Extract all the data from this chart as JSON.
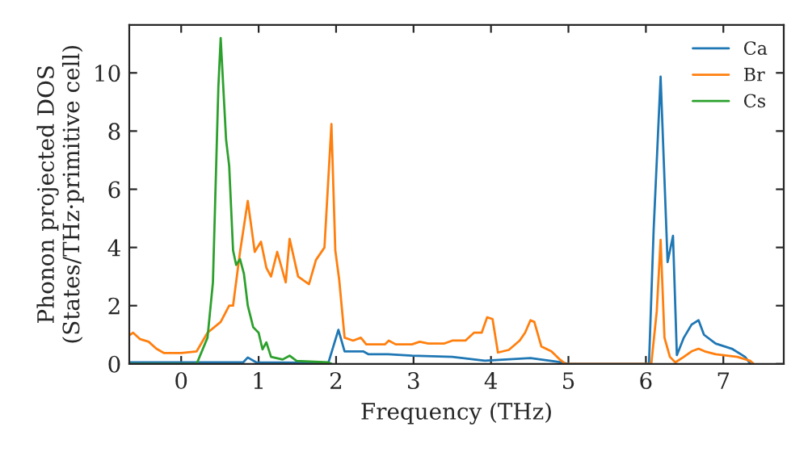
{
  "chart_data": {
    "type": "line",
    "xlabel": "Frequency (THz)",
    "ylabel": "Phonon projected DOS\n(States/THz·primitive cell)",
    "xlim": [
      -0.67,
      7.78
    ],
    "ylim": [
      0,
      11.65
    ],
    "xticks": [
      0,
      1,
      2,
      3,
      4,
      5,
      6,
      7
    ],
    "yticks": [
      0,
      2,
      4,
      6,
      8,
      10
    ],
    "grid": false,
    "legend": "top right",
    "marker": "none",
    "line_style": "solid",
    "series": [
      {
        "name": "Ca",
        "color": "#1f77b4",
        "x": [
          -0.67,
          0.8,
          0.86,
          0.97,
          1.9,
          2.03,
          2.11,
          2.35,
          2.42,
          2.67,
          2.98,
          3.5,
          3.92,
          4.51,
          4.89,
          5.0,
          6.04,
          6.1,
          6.19,
          6.28,
          6.35,
          6.4,
          6.49,
          6.59,
          6.68,
          6.75,
          6.9,
          7.11,
          7.28,
          7.35
        ],
        "values": [
          0.05,
          0.05,
          0.22,
          0.05,
          0.03,
          1.17,
          0.43,
          0.43,
          0.33,
          0.33,
          0.28,
          0.24,
          0.11,
          0.2,
          0.06,
          0,
          0,
          4.6,
          9.87,
          3.5,
          4.4,
          0.3,
          0.9,
          1.35,
          1.5,
          1.0,
          0.7,
          0.52,
          0.24,
          0
        ]
      },
      {
        "name": "Br",
        "color": "#ff7f0e",
        "x": [
          -0.67,
          -0.62,
          -0.53,
          -0.42,
          -0.32,
          -0.22,
          0,
          0.2,
          0.34,
          0.51,
          0.62,
          0.67,
          0.76,
          0.86,
          0.95,
          1.03,
          1.1,
          1.16,
          1.24,
          1.35,
          1.4,
          1.51,
          1.65,
          1.74,
          1.85,
          1.94,
          1.99,
          2.04,
          2.11,
          2.22,
          2.32,
          2.39,
          2.63,
          2.68,
          2.77,
          2.98,
          3.08,
          3.19,
          3.4,
          3.5,
          3.67,
          3.78,
          3.88,
          3.95,
          4.02,
          4.09,
          4.23,
          4.37,
          4.44,
          4.51,
          4.56,
          4.65,
          4.78,
          4.89,
          4.96,
          6.07,
          6.14,
          6.19,
          6.24,
          6.31,
          6.38,
          6.49,
          6.59,
          6.68,
          6.76,
          6.9,
          7.18,
          7.35,
          7.39
        ],
        "values": [
          0.98,
          1.07,
          0.85,
          0.76,
          0.52,
          0.37,
          0.37,
          0.43,
          1.07,
          1.44,
          2.0,
          2.0,
          3.85,
          5.6,
          3.85,
          4.2,
          3.3,
          3.0,
          3.85,
          2.8,
          4.3,
          3.0,
          2.74,
          3.57,
          4.0,
          8.24,
          3.9,
          2.9,
          0.9,
          0.8,
          0.9,
          0.67,
          0.67,
          0.8,
          0.67,
          0.67,
          0.76,
          0.7,
          0.7,
          0.8,
          0.8,
          1.07,
          1.07,
          1.6,
          1.54,
          0.39,
          0.48,
          0.8,
          1.07,
          1.5,
          1.44,
          0.6,
          0.43,
          0.15,
          0,
          0,
          1.8,
          4.26,
          0.9,
          0.24,
          0.05,
          0.24,
          0.43,
          0.52,
          0.43,
          0.33,
          0.24,
          0.1,
          0
        ]
      },
      {
        "name": "Cs",
        "color": "#2ca02c",
        "x": [
          -0.67,
          0.2,
          0.34,
          0.41,
          0.48,
          0.51,
          0.58,
          0.62,
          0.67,
          0.71,
          0.76,
          0.81,
          0.86,
          0.93,
          1.0,
          1.05,
          1.1,
          1.16,
          1.31,
          1.4,
          1.49,
          1.9,
          1.94
        ],
        "values": [
          0,
          0,
          0.9,
          2.8,
          9.5,
          11.2,
          7.7,
          6.8,
          3.9,
          3.4,
          3.6,
          3.1,
          2.0,
          1.26,
          1.07,
          0.5,
          0.74,
          0.24,
          0.15,
          0.28,
          0.1,
          0.05,
          0
        ]
      }
    ]
  }
}
